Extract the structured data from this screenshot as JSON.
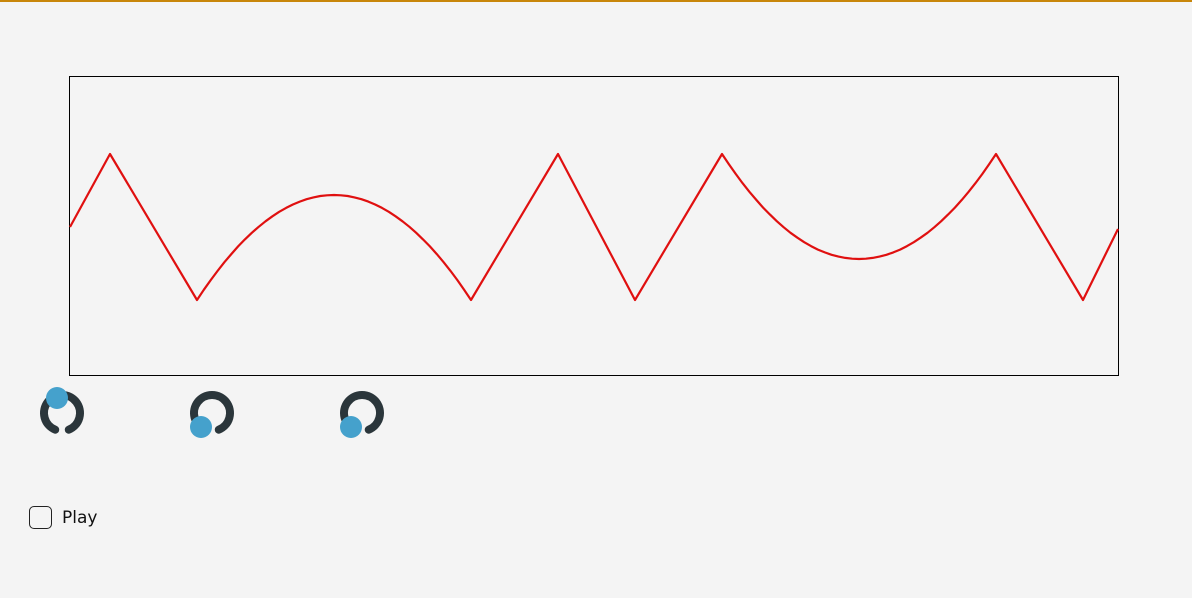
{
  "colors": {
    "top_bar": "#c8860a",
    "waveform": "#e01010",
    "panel_border": "#000000",
    "knob_ring": "#2b363b",
    "knob_handle": "#45a1cc",
    "background": "#f4f4f4"
  },
  "waveform": {
    "shape": "piecewise triangle / parabolic arcs",
    "segments": [
      "triangle",
      "triangle",
      "arc-up",
      "triangle",
      "triangle",
      "triangle",
      "triangle",
      "arc-down",
      "triangle",
      "triangle"
    ]
  },
  "knobs": [
    {
      "name": "knob-1",
      "value_fraction": 0.0
    },
    {
      "name": "knob-2",
      "value_fraction": 0.2
    },
    {
      "name": "knob-3",
      "value_fraction": 0.2
    }
  ],
  "play": {
    "label": "Play",
    "checked": false
  }
}
